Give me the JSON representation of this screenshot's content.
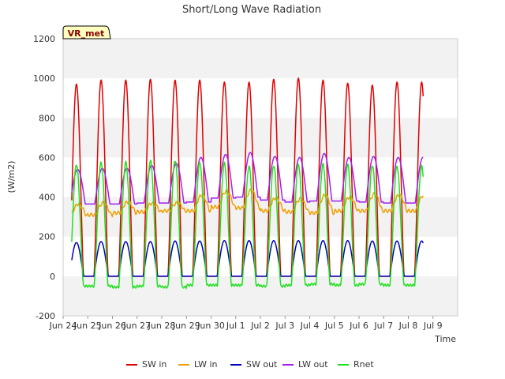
{
  "chart_data": {
    "type": "line",
    "title": "Short/Long Wave Radiation",
    "xlabel": "Time",
    "ylabel": "(W/m2)",
    "station_label": "VR_met",
    "ylim": [
      -200,
      1200
    ],
    "yticks": [
      -200,
      0,
      200,
      400,
      600,
      800,
      1000,
      1200
    ],
    "xlim": [
      0,
      16
    ],
    "xticks": [
      "Jun 24",
      "Jun 25",
      "Jun 26",
      "Jun 27",
      "Jun 28",
      "Jun 29",
      "Jun 30",
      "Jul 1",
      "Jul 2",
      "Jul 3",
      "Jul 4",
      "Jul 5",
      "Jul 6",
      "Jul 7",
      "Jul 8",
      "Jul 9"
    ],
    "grid": "alternating horizontal bands",
    "legend_position": "bottom",
    "x_day_starts": [
      "Jun 24",
      "Jun 25",
      "Jun 26",
      "Jun 27",
      "Jun 28",
      "Jun 29",
      "Jun 30",
      "Jul 1",
      "Jul 2",
      "Jul 3",
      "Jul 4",
      "Jul 5",
      "Jul 6",
      "Jul 7",
      "Jul 8"
    ],
    "series": [
      {
        "name": "SW in",
        "color": "#e00000",
        "kind": "sw_in",
        "daily_peak": [
          970,
          990,
          990,
          995,
          990,
          990,
          980,
          980,
          995,
          1000,
          990,
          975,
          965,
          980
        ]
      },
      {
        "name": "LW in",
        "color": "#f0a000",
        "kind": "lw_in",
        "daily_low": [
          305,
          310,
          320,
          325,
          330,
          330,
          350,
          345,
          330,
          325,
          320,
          330,
          330,
          330
        ],
        "daily_peak": [
          365,
          370,
          375,
          370,
          370,
          410,
          430,
          435,
          395,
          390,
          410,
          400,
          415,
          410
        ]
      },
      {
        "name": "SW out",
        "color": "#0000c0",
        "kind": "sw_out",
        "daily_peak": [
          170,
          175,
          175,
          175,
          178,
          178,
          180,
          180,
          180,
          180,
          180,
          180,
          178,
          178
        ]
      },
      {
        "name": "LW out",
        "color": "#a020f0",
        "kind": "lw_out",
        "daily_low": [
          365,
          365,
          365,
          370,
          370,
          375,
          395,
          400,
          385,
          375,
          380,
          380,
          375,
          370
        ],
        "daily_peak": [
          540,
          545,
          545,
          560,
          570,
          600,
          615,
          625,
          605,
          600,
          620,
          600,
          605,
          600
        ]
      },
      {
        "name": "Rnet",
        "color": "#20e020",
        "kind": "rnet",
        "daily_low": [
          -50,
          -50,
          -55,
          -50,
          -55,
          -45,
          -45,
          -45,
          -50,
          -45,
          -40,
          -45,
          -40,
          -45
        ],
        "daily_peak": [
          565,
          575,
          575,
          585,
          585,
          575,
          570,
          555,
          560,
          565,
          565,
          565,
          560,
          555
        ]
      }
    ]
  }
}
